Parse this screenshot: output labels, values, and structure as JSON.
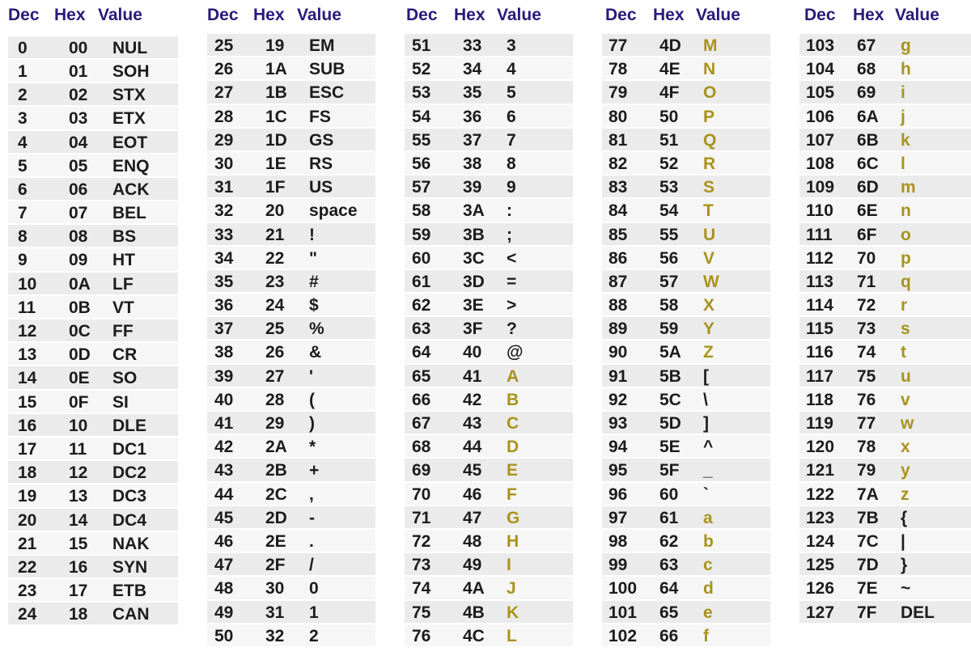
{
  "headers": {
    "dec": "Dec",
    "hex": "Hex",
    "value": "Value"
  },
  "columns": [
    {
      "rows": [
        [
          "0",
          "00",
          "NUL"
        ],
        [
          "1",
          "01",
          "SOH"
        ],
        [
          "2",
          "02",
          "STX"
        ],
        [
          "3",
          "03",
          "ETX"
        ],
        [
          "4",
          "04",
          "EOT"
        ],
        [
          "5",
          "05",
          "ENQ"
        ],
        [
          "6",
          "06",
          "ACK"
        ],
        [
          "7",
          "07",
          "BEL"
        ],
        [
          "8",
          "08",
          "BS"
        ],
        [
          "9",
          "09",
          "HT"
        ],
        [
          "10",
          "0A",
          "LF"
        ],
        [
          "11",
          "0B",
          "VT"
        ],
        [
          "12",
          "0C",
          "FF"
        ],
        [
          "13",
          "0D",
          "CR"
        ],
        [
          "14",
          "0E",
          "SO"
        ],
        [
          "15",
          "0F",
          "SI"
        ],
        [
          "16",
          "10",
          "DLE"
        ],
        [
          "17",
          "11",
          "DC1"
        ],
        [
          "18",
          "12",
          "DC2"
        ],
        [
          "19",
          "13",
          "DC3"
        ],
        [
          "20",
          "14",
          "DC4"
        ],
        [
          "21",
          "15",
          "NAK"
        ],
        [
          "22",
          "16",
          "SYN"
        ],
        [
          "23",
          "17",
          "ETB"
        ],
        [
          "24",
          "18",
          "CAN"
        ]
      ]
    },
    {
      "rows": [
        [
          "25",
          "19",
          "EM"
        ],
        [
          "26",
          "1A",
          "SUB"
        ],
        [
          "27",
          "1B",
          "ESC"
        ],
        [
          "28",
          "1C",
          "FS"
        ],
        [
          "29",
          "1D",
          "GS"
        ],
        [
          "30",
          "1E",
          "RS"
        ],
        [
          "31",
          "1F",
          "US"
        ],
        [
          "32",
          "20",
          "space"
        ],
        [
          "33",
          "21",
          "!"
        ],
        [
          "34",
          "22",
          "\""
        ],
        [
          "35",
          "23",
          "#"
        ],
        [
          "36",
          "24",
          "$"
        ],
        [
          "37",
          "25",
          "%"
        ],
        [
          "38",
          "26",
          "&"
        ],
        [
          "39",
          "27",
          "'"
        ],
        [
          "40",
          "28",
          "("
        ],
        [
          "41",
          "29",
          ")"
        ],
        [
          "42",
          "2A",
          "*"
        ],
        [
          "43",
          "2B",
          "+"
        ],
        [
          "44",
          "2C",
          ","
        ],
        [
          "45",
          "2D",
          "-"
        ],
        [
          "46",
          "2E",
          "."
        ],
        [
          "47",
          "2F",
          "/"
        ],
        [
          "48",
          "30",
          "0"
        ],
        [
          "49",
          "31",
          "1"
        ],
        [
          "50",
          "32",
          "2"
        ]
      ]
    },
    {
      "rows": [
        [
          "51",
          "33",
          "3"
        ],
        [
          "52",
          "34",
          "4"
        ],
        [
          "53",
          "35",
          "5"
        ],
        [
          "54",
          "36",
          "6"
        ],
        [
          "55",
          "37",
          "7"
        ],
        [
          "56",
          "38",
          "8"
        ],
        [
          "57",
          "39",
          "9"
        ],
        [
          "58",
          "3A",
          ":"
        ],
        [
          "59",
          "3B",
          ";"
        ],
        [
          "60",
          "3C",
          "<"
        ],
        [
          "61",
          "3D",
          "="
        ],
        [
          "62",
          "3E",
          ">"
        ],
        [
          "63",
          "3F",
          "?"
        ],
        [
          "64",
          "40",
          "@"
        ],
        [
          "65",
          "41",
          "A"
        ],
        [
          "66",
          "42",
          "B"
        ],
        [
          "67",
          "43",
          "C"
        ],
        [
          "68",
          "44",
          "D"
        ],
        [
          "69",
          "45",
          "E"
        ],
        [
          "70",
          "46",
          "F"
        ],
        [
          "71",
          "47",
          "G"
        ],
        [
          "72",
          "48",
          "H"
        ],
        [
          "73",
          "49",
          "I"
        ],
        [
          "74",
          "4A",
          "J"
        ],
        [
          "75",
          "4B",
          "K"
        ],
        [
          "76",
          "4C",
          "L"
        ]
      ]
    },
    {
      "rows": [
        [
          "77",
          "4D",
          "M"
        ],
        [
          "78",
          "4E",
          "N"
        ],
        [
          "79",
          "4F",
          "O"
        ],
        [
          "80",
          "50",
          "P"
        ],
        [
          "81",
          "51",
          "Q"
        ],
        [
          "82",
          "52",
          "R"
        ],
        [
          "83",
          "53",
          "S"
        ],
        [
          "84",
          "54",
          "T"
        ],
        [
          "85",
          "55",
          "U"
        ],
        [
          "86",
          "56",
          "V"
        ],
        [
          "87",
          "57",
          "W"
        ],
        [
          "88",
          "58",
          "X"
        ],
        [
          "89",
          "59",
          "Y"
        ],
        [
          "90",
          "5A",
          "Z"
        ],
        [
          "91",
          "5B",
          "["
        ],
        [
          "92",
          "5C",
          "\\"
        ],
        [
          "93",
          "5D",
          "]"
        ],
        [
          "94",
          "5E",
          "^"
        ],
        [
          "95",
          "5F",
          "_"
        ],
        [
          "96",
          "60",
          "`"
        ],
        [
          "97",
          "61",
          "a"
        ],
        [
          "98",
          "62",
          "b"
        ],
        [
          "99",
          "63",
          "c"
        ],
        [
          "100",
          "64",
          "d"
        ],
        [
          "101",
          "65",
          "e"
        ],
        [
          "102",
          "66",
          "f"
        ]
      ]
    },
    {
      "rows": [
        [
          "103",
          "67",
          "g"
        ],
        [
          "104",
          "68",
          "h"
        ],
        [
          "105",
          "69",
          "i"
        ],
        [
          "106",
          "6A",
          "j"
        ],
        [
          "107",
          "6B",
          "k"
        ],
        [
          "108",
          "6C",
          "l"
        ],
        [
          "109",
          "6D",
          "m"
        ],
        [
          "110",
          "6E",
          "n"
        ],
        [
          "111",
          "6F",
          "o"
        ],
        [
          "112",
          "70",
          "p"
        ],
        [
          "113",
          "71",
          "q"
        ],
        [
          "114",
          "72",
          "r"
        ],
        [
          "115",
          "73",
          "s"
        ],
        [
          "116",
          "74",
          "t"
        ],
        [
          "117",
          "75",
          "u"
        ],
        [
          "118",
          "76",
          "v"
        ],
        [
          "119",
          "77",
          "w"
        ],
        [
          "120",
          "78",
          "x"
        ],
        [
          "121",
          "79",
          "y"
        ],
        [
          "122",
          "7A",
          "z"
        ],
        [
          "123",
          "7B",
          "{"
        ],
        [
          "124",
          "7C",
          "|"
        ],
        [
          "125",
          "7D",
          "}"
        ],
        [
          "126",
          "7E",
          "~"
        ],
        [
          "127",
          "7F",
          "DEL"
        ]
      ]
    }
  ]
}
